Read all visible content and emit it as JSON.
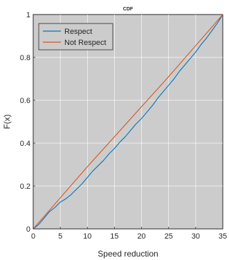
{
  "chart_data": {
    "type": "line",
    "title": "CDF",
    "xlabel": "Speed reduction",
    "ylabel": "F(x)",
    "xlim": [
      0,
      35
    ],
    "ylim": [
      0,
      1
    ],
    "xticks": [
      0,
      5,
      10,
      15,
      20,
      25,
      30,
      35
    ],
    "yticks": [
      0,
      0.2,
      0.4,
      0.6,
      0.8,
      1
    ],
    "xtick_labels": [
      "0",
      "5",
      "10",
      "15",
      "20",
      "25",
      "30",
      "35"
    ],
    "ytick_labels": [
      "0",
      "0.2",
      "0.4",
      "0.6",
      "0.8",
      "1"
    ],
    "grid": true,
    "background": "#cccccc",
    "legend_position": "top-left",
    "series": [
      {
        "name": "Respect",
        "color": "#0072bd",
        "x": [
          0,
          1,
          2,
          3,
          4,
          5,
          6,
          7,
          8,
          9,
          10,
          11,
          12,
          13,
          14,
          15,
          16,
          17,
          18,
          19,
          20,
          21,
          22,
          23,
          24,
          25,
          26,
          27,
          28,
          29,
          30,
          31,
          32,
          33,
          34,
          35
        ],
        "y": [
          0,
          0.02,
          0.05,
          0.08,
          0.1,
          0.125,
          0.14,
          0.16,
          0.185,
          0.21,
          0.24,
          0.27,
          0.295,
          0.32,
          0.35,
          0.375,
          0.405,
          0.43,
          0.46,
          0.49,
          0.515,
          0.545,
          0.575,
          0.61,
          0.64,
          0.67,
          0.7,
          0.735,
          0.765,
          0.795,
          0.825,
          0.86,
          0.89,
          0.925,
          0.96,
          1
        ]
      },
      {
        "name": "Not Respect",
        "color": "#d95319",
        "x": [
          0,
          5,
          10,
          15,
          20,
          25,
          30,
          35
        ],
        "y": [
          0,
          0.145,
          0.29,
          0.43,
          0.57,
          0.71,
          0.855,
          1
        ]
      }
    ]
  }
}
